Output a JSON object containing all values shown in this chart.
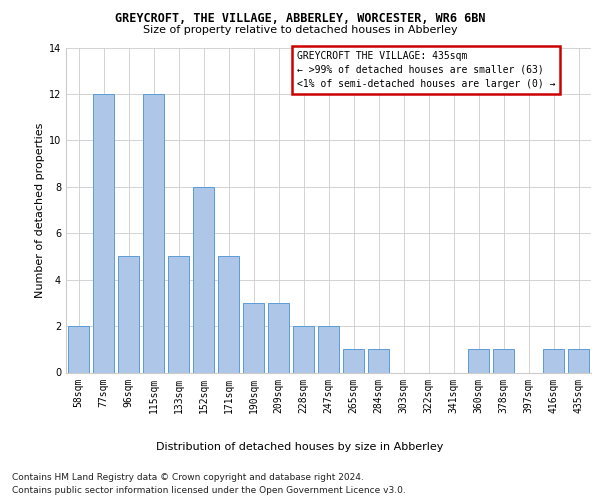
{
  "title": "GREYCROFT, THE VILLAGE, ABBERLEY, WORCESTER, WR6 6BN",
  "subtitle": "Size of property relative to detached houses in Abberley",
  "xlabel_bottom": "Distribution of detached houses by size in Abberley",
  "ylabel": "Number of detached properties",
  "categories": [
    "58sqm",
    "77sqm",
    "96sqm",
    "115sqm",
    "133sqm",
    "152sqm",
    "171sqm",
    "190sqm",
    "209sqm",
    "228sqm",
    "247sqm",
    "265sqm",
    "284sqm",
    "303sqm",
    "322sqm",
    "341sqm",
    "360sqm",
    "378sqm",
    "397sqm",
    "416sqm",
    "435sqm"
  ],
  "values": [
    2,
    12,
    5,
    12,
    5,
    8,
    5,
    3,
    3,
    2,
    2,
    1,
    1,
    0,
    0,
    0,
    1,
    1,
    0,
    1,
    1
  ],
  "bar_color": "#aec6e8",
  "bar_edge_color": "#5b9bd5",
  "box_text_line1": "GREYCROFT THE VILLAGE: 435sqm",
  "box_text_line2": "← >99% of detached houses are smaller (63)",
  "box_text_line3": "<1% of semi-detached houses are larger (0) →",
  "box_color": "#cc0000",
  "ylim": [
    0,
    14
  ],
  "yticks": [
    0,
    2,
    4,
    6,
    8,
    10,
    12,
    14
  ],
  "footer_line1": "Contains HM Land Registry data © Crown copyright and database right 2024.",
  "footer_line2": "Contains public sector information licensed under the Open Government Licence v3.0.",
  "background_color": "#ffffff",
  "grid_color": "#cccccc",
  "title_fontsize": 8.5,
  "subtitle_fontsize": 8,
  "ylabel_fontsize": 8,
  "xlabel_fontsize": 8,
  "tick_fontsize": 7,
  "annotation_fontsize": 7,
  "footer_fontsize": 6.5
}
